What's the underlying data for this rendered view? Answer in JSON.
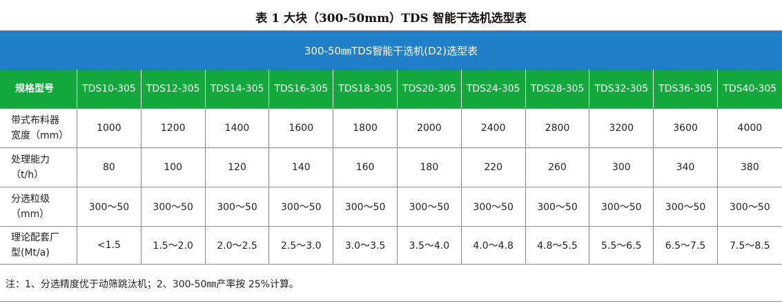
{
  "title": "表 1   大块（300-50mm）TDS 智能干选机选型表",
  "banner": "300-50㎜TDS智能干选机(D2)选型表",
  "header": {
    "label": "规格型号",
    "models": [
      "TDS10-305",
      "TDS12-305",
      "TDS14-305",
      "TDS16-305",
      "TDS18-305",
      "TDS20-305",
      "TDS24-305",
      "TDS28-305",
      "TDS32-305",
      "TDS36-305",
      "TDS40-305"
    ]
  },
  "rows": [
    {
      "label_line1": "带式布料器",
      "label_line2": "宽度（mm）",
      "values": [
        "1000",
        "1200",
        "1400",
        "1600",
        "1800",
        "2000",
        "2400",
        "2800",
        "3200",
        "3600",
        "4000"
      ]
    },
    {
      "label_line1": "处理能力",
      "label_line2": "（t/h）",
      "values": [
        "80",
        "100",
        "120",
        "140",
        "160",
        "180",
        "220",
        "260",
        "300",
        "340",
        "380"
      ]
    },
    {
      "label_line1": "分选粒级",
      "label_line2": "（mm）",
      "values": [
        "300～50",
        "300～50",
        "300～50",
        "300～50",
        "300～50",
        "300～50",
        "300～50",
        "300～50",
        "300～50",
        "300～50",
        "300～50"
      ]
    },
    {
      "label_line1": "理论配套厂",
      "label_line2": "型(Mt/a)",
      "values": [
        "<1.5",
        "1.5～2.0",
        "2.0～2.5",
        "2.5～3.0",
        "3.0～3.5",
        "3.5～4.0",
        "4.0～4.8",
        "4.8～5.5",
        "5.5～6.5",
        "6.5～7.5",
        "7.5～8.5"
      ]
    }
  ],
  "note": "注：1、分选精度优于动筛跳汰机；2、300-50㎜产率按 25%计算。"
}
